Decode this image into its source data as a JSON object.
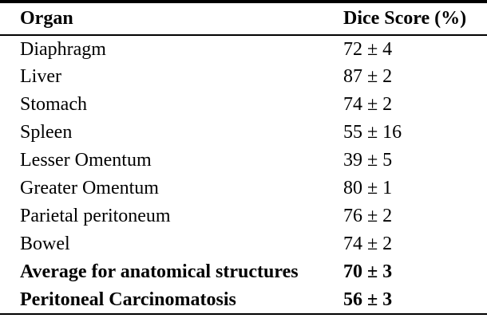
{
  "table": {
    "columns": [
      "Organ",
      "Dice Score (%)"
    ],
    "rows": [
      {
        "organ": "Diaphragm",
        "dice": "72 ± 4",
        "bold": false
      },
      {
        "organ": "Liver",
        "dice": "87 ± 2",
        "bold": false
      },
      {
        "organ": "Stomach",
        "dice": "74 ± 2",
        "bold": false
      },
      {
        "organ": "Spleen",
        "dice": "55 ± 16",
        "bold": false
      },
      {
        "organ": "Lesser Omentum",
        "dice": "39 ± 5",
        "bold": false
      },
      {
        "organ": "Greater Omentum",
        "dice": "80 ± 1",
        "bold": false
      },
      {
        "organ": "Parietal peritoneum",
        "dice": "76 ± 2",
        "bold": false
      },
      {
        "organ": "Bowel",
        "dice": "74 ± 2",
        "bold": false
      },
      {
        "organ": "Average for anatomical structures",
        "dice": "70 ± 3",
        "bold": true
      },
      {
        "organ": "Peritoneal Carcinomatosis",
        "dice": "56 ± 3",
        "bold": true
      }
    ]
  },
  "colors": {
    "text": "#000000",
    "background": "#ffffff",
    "rule": "#000000"
  }
}
